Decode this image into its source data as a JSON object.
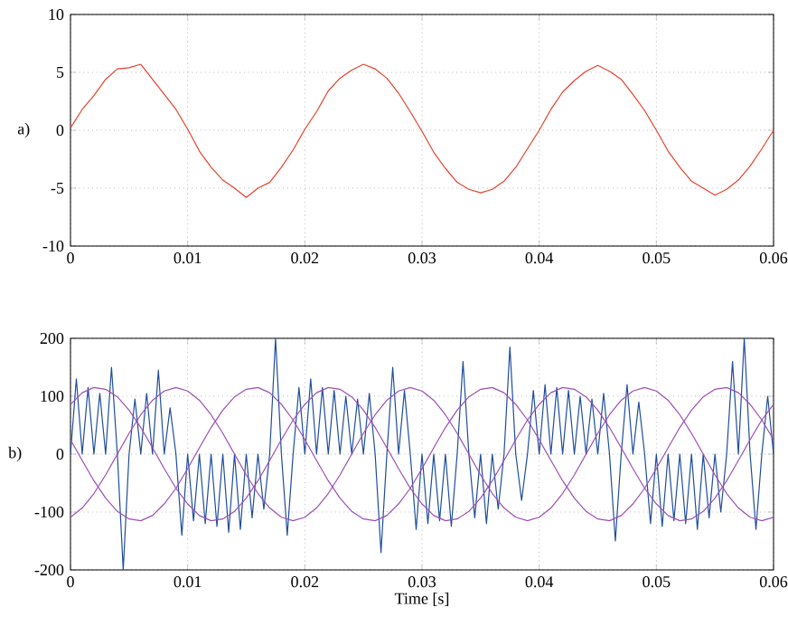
{
  "chart_data": [
    {
      "type": "line",
      "ylabel": "a)",
      "x": [
        0,
        0.001,
        0.002,
        0.003,
        0.004,
        0.005,
        0.006,
        0.007,
        0.008,
        0.009,
        0.01,
        0.011,
        0.012,
        0.013,
        0.014,
        0.015,
        0.016,
        0.017,
        0.018,
        0.019,
        0.02,
        0.021,
        0.022,
        0.023,
        0.024,
        0.025,
        0.026,
        0.027,
        0.028,
        0.029,
        0.03,
        0.031,
        0.032,
        0.033,
        0.034,
        0.035,
        0.036,
        0.037,
        0.038,
        0.039,
        0.04,
        0.041,
        0.042,
        0.043,
        0.044,
        0.045,
        0.046,
        0.047,
        0.048,
        0.049,
        0.05,
        0.051,
        0.052,
        0.053,
        0.054,
        0.055,
        0.056,
        0.057,
        0.058,
        0.059,
        0.06
      ],
      "series": [
        {
          "color": "#e8412c",
          "values": [
            0.2,
            1.8,
            3.0,
            4.4,
            5.3,
            5.4,
            5.7,
            4.4,
            3.1,
            1.8,
            0.1,
            -1.8,
            -3.2,
            -4.3,
            -5.0,
            -5.8,
            -5.0,
            -4.5,
            -3.2,
            -1.7,
            0.1,
            1.6,
            3.4,
            4.5,
            5.2,
            5.7,
            5.3,
            4.5,
            3.2,
            1.6,
            -0.1,
            -1.9,
            -3.3,
            -4.5,
            -5.1,
            -5.4,
            -5.1,
            -4.4,
            -3.2,
            -1.6,
            0,
            1.8,
            3.3,
            4.3,
            5.1,
            5.6,
            5.1,
            4.4,
            3.1,
            1.7,
            0,
            -1.8,
            -3.2,
            -4.4,
            -5.0,
            -5.6,
            -5.1,
            -4.3,
            -3.1,
            -1.6,
            0
          ]
        }
      ],
      "xlim": [
        0,
        0.06
      ],
      "xticks": [
        0,
        0.01,
        0.02,
        0.03,
        0.04,
        0.05,
        0.06
      ],
      "ylim": [
        -10,
        10
      ],
      "yticks": [
        -10,
        -5,
        0,
        5,
        10
      ],
      "grid": true
    },
    {
      "type": "line",
      "ylabel": "b)",
      "xlabel": "Time [s]",
      "x": [
        0,
        0.001,
        0.002,
        0.003,
        0.004,
        0.005,
        0.006,
        0.007,
        0.008,
        0.009,
        0.01,
        0.011,
        0.012,
        0.013,
        0.014,
        0.015,
        0.016,
        0.017,
        0.018,
        0.019,
        0.02,
        0.021,
        0.022,
        0.023,
        0.024,
        0.025,
        0.026,
        0.027,
        0.028,
        0.029,
        0.03,
        0.031,
        0.032,
        0.033,
        0.034,
        0.035,
        0.036,
        0.037,
        0.038,
        0.039,
        0.04,
        0.041,
        0.042,
        0.043,
        0.044,
        0.045,
        0.046,
        0.047,
        0.048,
        0.049,
        0.05,
        0.051,
        0.052,
        0.053,
        0.054,
        0.055,
        0.056,
        0.057,
        0.058,
        0.059,
        0.06
      ],
      "series": [
        {
          "color": "#1f4e9c",
          "x": [
            0,
            0.0005,
            0.001,
            0.0015,
            0.002,
            0.0025,
            0.003,
            0.0035,
            0.004,
            0.0045,
            0.005,
            0.0055,
            0.006,
            0.0065,
            0.007,
            0.0075,
            0.008,
            0.0085,
            0.009,
            0.0095,
            0.01,
            0.0105,
            0.011,
            0.0115,
            0.012,
            0.0125,
            0.013,
            0.0135,
            0.014,
            0.0145,
            0.015,
            0.0155,
            0.016,
            0.0165,
            0.017,
            0.0175,
            0.018,
            0.0185,
            0.019,
            0.0195,
            0.02,
            0.0205,
            0.021,
            0.0215,
            0.022,
            0.0225,
            0.023,
            0.0235,
            0.024,
            0.0245,
            0.025,
            0.0255,
            0.026,
            0.0265,
            0.027,
            0.0275,
            0.028,
            0.0285,
            0.029,
            0.0295,
            0.03,
            0.0305,
            0.031,
            0.0315,
            0.032,
            0.0325,
            0.033,
            0.0335,
            0.034,
            0.0345,
            0.035,
            0.0355,
            0.036,
            0.0365,
            0.037,
            0.0375,
            0.038,
            0.0385,
            0.039,
            0.0395,
            0.04,
            0.0405,
            0.041,
            0.0415,
            0.042,
            0.0425,
            0.043,
            0.0435,
            0.044,
            0.0445,
            0.045,
            0.0455,
            0.046,
            0.0465,
            0.047,
            0.0475,
            0.048,
            0.0485,
            0.049,
            0.0495,
            0.05,
            0.0505,
            0.051,
            0.0515,
            0.052,
            0.0525,
            0.053,
            0.0535,
            0.054,
            0.0545,
            0.055,
            0.0555,
            0.056,
            0.0565,
            0.057,
            0.0575,
            0.058,
            0.0585,
            0.059,
            0.0595,
            0.06
          ],
          "values": [
            0,
            130,
            0,
            115,
            0,
            105,
            0,
            150,
            0,
            -200,
            0,
            95,
            0,
            105,
            0,
            145,
            0,
            80,
            0,
            -140,
            0,
            -115,
            0,
            -120,
            0,
            -125,
            0,
            -135,
            0,
            -130,
            0,
            -110,
            0,
            -95,
            0,
            200,
            0,
            -140,
            0,
            115,
            0,
            130,
            0,
            115,
            0,
            110,
            0,
            100,
            0,
            95,
            0,
            105,
            0,
            -170,
            0,
            150,
            0,
            110,
            0,
            -130,
            0,
            -120,
            0,
            -115,
            0,
            -125,
            0,
            160,
            0,
            -110,
            0,
            -120,
            0,
            -95,
            0,
            185,
            0,
            -80,
            0,
            110,
            0,
            120,
            0,
            115,
            0,
            110,
            0,
            100,
            0,
            95,
            0,
            105,
            0,
            -150,
            0,
            120,
            0,
            90,
            0,
            -120,
            0,
            -125,
            0,
            -115,
            0,
            -120,
            0,
            -130,
            0,
            -110,
            0,
            -100,
            0,
            160,
            0,
            200,
            0,
            -130,
            0,
            100,
            0
          ]
        },
        {
          "color": "#9b4fb5",
          "values": [
            86,
            106,
            115,
            112,
            99,
            76,
            46,
            11,
            -25,
            -59,
            -86,
            -106,
            -115,
            -112,
            -99,
            -76,
            -46,
            -11,
            25,
            59,
            86,
            106,
            115,
            112,
            99,
            76,
            46,
            11,
            -25,
            -59,
            -86,
            -106,
            -115,
            -112,
            -99,
            -76,
            -46,
            -11,
            25,
            59,
            86,
            106,
            115,
            112,
            99,
            76,
            46,
            11,
            -25,
            -59,
            -86,
            -106,
            -115,
            -112,
            -99,
            -76,
            -46,
            -11,
            25,
            59,
            86
          ]
        },
        {
          "color": "#9b4fb5",
          "values": [
            -109,
            -93,
            -68,
            -36,
            0,
            36,
            68,
            93,
            109,
            115,
            109,
            93,
            68,
            36,
            0,
            -36,
            -68,
            -93,
            -109,
            -115,
            -109,
            -93,
            -68,
            -36,
            0,
            36,
            68,
            93,
            109,
            115,
            109,
            93,
            68,
            36,
            0,
            -36,
            -68,
            -93,
            -109,
            -115,
            -109,
            -93,
            -68,
            -36,
            0,
            36,
            68,
            93,
            109,
            115,
            109,
            93,
            68,
            36,
            0,
            -36,
            -68,
            -93,
            -109,
            -115,
            -109
          ]
        },
        {
          "color": "#9b4fb5",
          "values": [
            25,
            -11,
            -46,
            -76,
            -99,
            -112,
            -115,
            -106,
            -86,
            -59,
            -25,
            11,
            46,
            76,
            99,
            112,
            115,
            106,
            86,
            59,
            25,
            -11,
            -46,
            -76,
            -99,
            -112,
            -115,
            -106,
            -86,
            -59,
            -25,
            11,
            46,
            76,
            99,
            112,
            115,
            106,
            86,
            59,
            25,
            -11,
            -46,
            -76,
            -99,
            -112,
            -115,
            -106,
            -86,
            -59,
            -25,
            11,
            46,
            76,
            99,
            112,
            115,
            106,
            86,
            59,
            25
          ]
        }
      ],
      "xlim": [
        0,
        0.06
      ],
      "xticks": [
        0,
        0.01,
        0.02,
        0.03,
        0.04,
        0.05,
        0.06
      ],
      "ylim": [
        -200,
        200
      ],
      "yticks": [
        -200,
        -100,
        0,
        100,
        200
      ],
      "grid": true
    }
  ]
}
